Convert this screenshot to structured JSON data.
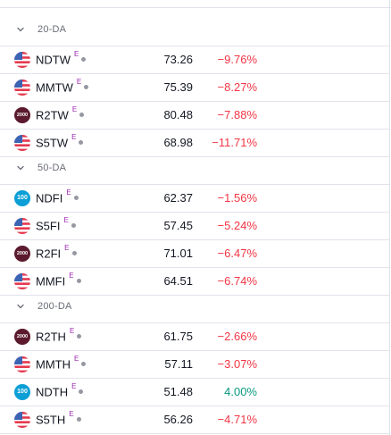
{
  "sections": [
    {
      "title": "20-DA",
      "rows": [
        {
          "symbol": "NDTW",
          "badge": "E",
          "logo": "us-flag",
          "last": "73.26",
          "change": "−9.76%",
          "dir": "neg"
        },
        {
          "symbol": "MMTW",
          "badge": "E",
          "logo": "us-flag",
          "last": "75.39",
          "change": "−8.27%",
          "dir": "neg"
        },
        {
          "symbol": "R2TW",
          "badge": "E",
          "logo": "russell-2000",
          "logo_text": "2000",
          "last": "80.48",
          "change": "−7.88%",
          "dir": "neg"
        },
        {
          "symbol": "S5TW",
          "badge": "E",
          "logo": "us-flag",
          "last": "68.98",
          "change": "−11.71%",
          "dir": "neg"
        }
      ]
    },
    {
      "title": "50-DA",
      "rows": [
        {
          "symbol": "NDFI",
          "badge": "E",
          "logo": "nasdaq-100",
          "logo_text": "100",
          "last": "62.37",
          "change": "−1.56%",
          "dir": "neg"
        },
        {
          "symbol": "S5FI",
          "badge": "E",
          "logo": "us-flag",
          "last": "57.45",
          "change": "−5.24%",
          "dir": "neg"
        },
        {
          "symbol": "R2FI",
          "badge": "E",
          "logo": "russell-2000",
          "logo_text": "2000",
          "last": "71.01",
          "change": "−6.47%",
          "dir": "neg"
        },
        {
          "symbol": "MMFI",
          "badge": "E",
          "logo": "us-flag",
          "last": "64.51",
          "change": "−6.74%",
          "dir": "neg"
        }
      ]
    },
    {
      "title": "200-DA",
      "rows": [
        {
          "symbol": "R2TH",
          "badge": "E",
          "logo": "russell-2000",
          "logo_text": "2000",
          "last": "61.75",
          "change": "−2.66%",
          "dir": "neg"
        },
        {
          "symbol": "MMTH",
          "badge": "E",
          "logo": "us-flag",
          "last": "57.11",
          "change": "−3.07%",
          "dir": "neg"
        },
        {
          "symbol": "NDTH",
          "badge": "E",
          "logo": "nasdaq-100",
          "logo_text": "100",
          "last": "51.48",
          "change": "4.00%",
          "dir": "pos"
        },
        {
          "symbol": "S5TH",
          "badge": "E",
          "logo": "us-flag",
          "last": "56.26",
          "change": "−4.71%",
          "dir": "neg"
        }
      ]
    }
  ],
  "colors": {
    "negative": "#f23645",
    "positive": "#089981",
    "badge": "#9c27b0",
    "russell_2000": "#5b1a2e",
    "nasdaq_100": "#0b9fd6"
  }
}
